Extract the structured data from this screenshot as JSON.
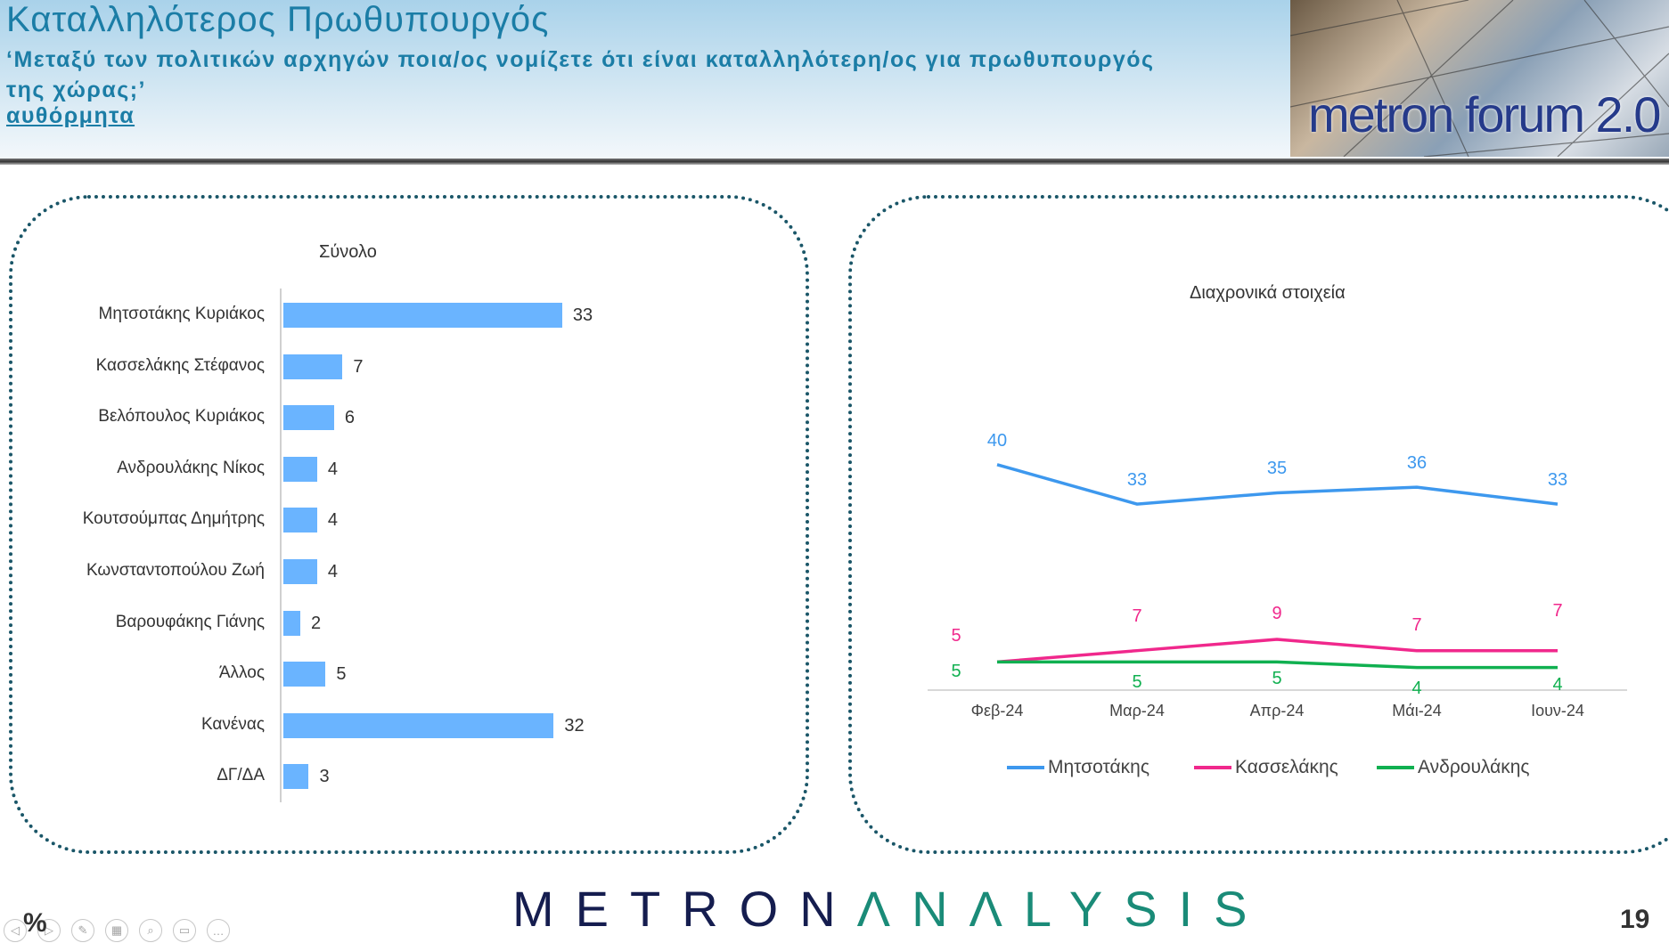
{
  "header": {
    "title": "Καταλληλότερος Πρωθυπουργός",
    "subtitle": "‘Μεταξύ των πολιτικών αρχηγών ποια/ος νομίζετε ότι είναι καταλληλότερη/ος για πρωθυπουργός της χώρας;’",
    "note": "αυθόρμητα",
    "badge": "metron forum 2.0"
  },
  "chart_data": [
    {
      "type": "bar",
      "title": "Σύνολο",
      "categories": [
        "Μητσοτάκης Κυριάκος",
        "Κασσελάκης Στέφανος",
        "Βελόπουλος Κυριάκος",
        "Ανδρουλάκης Νίκος",
        "Κουτσούμπας Δημήτρης",
        "Κωνσταντοπούλου Ζωή",
        "Βαρουφάκης Γιάνης",
        "Άλλος",
        "Κανένας",
        "ΔΓ/ΔΑ"
      ],
      "values": [
        33,
        7,
        6,
        4,
        4,
        4,
        2,
        5,
        32,
        3
      ],
      "color": "#6ab4ff"
    },
    {
      "type": "line",
      "title": "Διαχρονικά στοιχεία",
      "x": [
        "Φεβ-24",
        "Μαρ-24",
        "Απρ-24",
        "Μάι-24",
        "Ιουν-24"
      ],
      "series": [
        {
          "name": "Μητσοτάκης",
          "values": [
            40,
            33,
            35,
            36,
            33
          ],
          "color": "#3d98ee"
        },
        {
          "name": "Κασσελάκης",
          "values": [
            5,
            7,
            9,
            7,
            7
          ],
          "color": "#f0288c"
        },
        {
          "name": "Ανδρουλάκης",
          "values": [
            5,
            5,
            5,
            4,
            4
          ],
          "color": "#10b050"
        }
      ],
      "legend": "bottom"
    }
  ],
  "footer": {
    "logo_a": "METRON",
    "logo_b": "ΛNΛLYSIS",
    "page": "19",
    "zoom_symbol": "%"
  }
}
